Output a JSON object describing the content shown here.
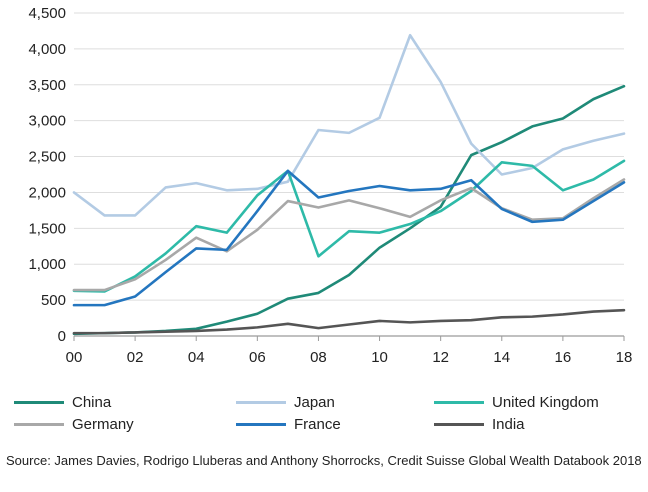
{
  "chart_data": {
    "type": "line",
    "title": "",
    "xlabel": "",
    "ylabel": "",
    "x": [
      2000,
      2001,
      2002,
      2003,
      2004,
      2005,
      2006,
      2007,
      2008,
      2009,
      2010,
      2011,
      2012,
      2013,
      2014,
      2015,
      2016,
      2017,
      2018
    ],
    "xticks": [
      2000,
      2002,
      2004,
      2006,
      2008,
      2010,
      2012,
      2014,
      2016,
      2018
    ],
    "xtick_labels": [
      "00",
      "02",
      "04",
      "06",
      "08",
      "10",
      "12",
      "14",
      "16",
      "18"
    ],
    "xlim": [
      2000,
      2018
    ],
    "ylim": [
      0,
      4500
    ],
    "yticks": [
      0,
      500,
      1000,
      1500,
      2000,
      2500,
      3000,
      3500,
      4000,
      4500
    ],
    "ytick_labels": [
      "0",
      "500",
      "1,000",
      "1,500",
      "2,000",
      "2,500",
      "3,000",
      "3,500",
      "4,000",
      "4,500"
    ],
    "grid": "horizontal",
    "legend_position": "bottom",
    "series": [
      {
        "name": "China",
        "color": "#1f8a78",
        "values": [
          30,
          40,
          50,
          70,
          100,
          200,
          310,
          520,
          600,
          850,
          1230,
          1500,
          1800,
          2520,
          2700,
          2920,
          3030,
          3300,
          3480
        ]
      },
      {
        "name": "Japan",
        "color": "#b3cbe4",
        "values": [
          2000,
          1680,
          1680,
          2070,
          2130,
          2030,
          2050,
          2150,
          2870,
          2830,
          3040,
          4190,
          3540,
          2680,
          2250,
          2340,
          2600,
          2720,
          2820
        ]
      },
      {
        "name": "United Kingdom",
        "color": "#2ebaa8",
        "values": [
          630,
          620,
          830,
          1150,
          1530,
          1440,
          1960,
          2300,
          1110,
          1460,
          1440,
          1560,
          1740,
          2020,
          2420,
          2370,
          2030,
          2180,
          2440
        ]
      },
      {
        "name": "Germany",
        "color": "#a8a8a8",
        "values": [
          640,
          640,
          790,
          1060,
          1370,
          1180,
          1480,
          1880,
          1790,
          1890,
          1780,
          1660,
          1890,
          2060,
          1780,
          1620,
          1640,
          1920,
          2180
        ]
      },
      {
        "name": "France",
        "color": "#2476bf",
        "values": [
          430,
          430,
          550,
          890,
          1220,
          1200,
          1740,
          2300,
          1930,
          2020,
          2090,
          2030,
          2050,
          2170,
          1770,
          1590,
          1620,
          1880,
          2140
        ]
      },
      {
        "name": "India",
        "color": "#555555",
        "values": [
          40,
          40,
          50,
          60,
          70,
          90,
          120,
          170,
          110,
          160,
          210,
          190,
          210,
          220,
          260,
          270,
          300,
          340,
          360
        ]
      }
    ]
  },
  "source": "Source: James Davies, Rodrigo Lluberas and Anthony Shorrocks, Credit Suisse Global Wealth Databook 2018"
}
